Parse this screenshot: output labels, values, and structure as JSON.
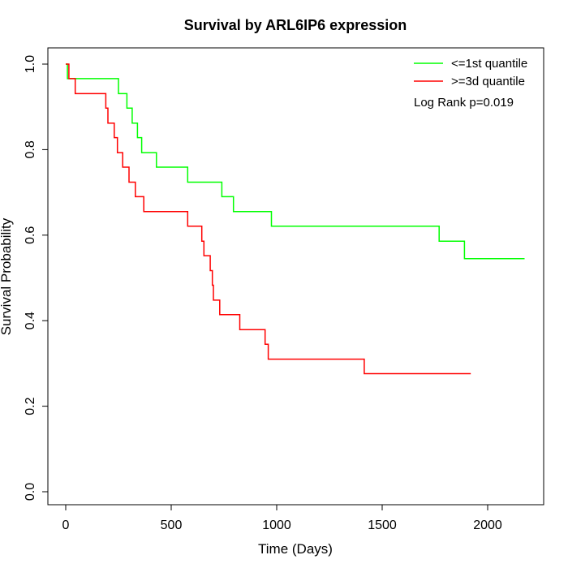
{
  "chart_data": {
    "type": "line",
    "title": "Survival by ARL6IP6 expression",
    "xlabel": "Time (Days)",
    "ylabel": "Survival Probability",
    "xlim": [
      0,
      2250
    ],
    "ylim": [
      0,
      1.0
    ],
    "xticks": [
      0,
      500,
      1000,
      1500,
      2000
    ],
    "xtick_labels": [
      "0",
      "500",
      "1000",
      "1500",
      "2000"
    ],
    "yticks": [
      0.0,
      0.2,
      0.4,
      0.6,
      0.8,
      1.0
    ],
    "ytick_labels": [
      "0.0",
      "0.2",
      "0.4",
      "0.6",
      "0.8",
      "1.0"
    ],
    "grid": false,
    "legend_position": "top-right",
    "annotation": "Log Rank p=0.019",
    "series": [
      {
        "name": "<=1st quantile",
        "color": "#00ff00",
        "step": true,
        "points": [
          [
            0,
            1.0
          ],
          [
            8,
            1.0
          ],
          [
            8,
            0.966
          ],
          [
            250,
            0.966
          ],
          [
            250,
            0.931
          ],
          [
            290,
            0.931
          ],
          [
            290,
            0.897
          ],
          [
            315,
            0.897
          ],
          [
            315,
            0.862
          ],
          [
            340,
            0.862
          ],
          [
            340,
            0.828
          ],
          [
            360,
            0.828
          ],
          [
            360,
            0.793
          ],
          [
            430,
            0.793
          ],
          [
            430,
            0.759
          ],
          [
            578,
            0.759
          ],
          [
            578,
            0.724
          ],
          [
            740,
            0.724
          ],
          [
            740,
            0.69
          ],
          [
            795,
            0.69
          ],
          [
            795,
            0.655
          ],
          [
            975,
            0.655
          ],
          [
            975,
            0.621
          ],
          [
            1770,
            0.621
          ],
          [
            1770,
            0.586
          ],
          [
            1890,
            0.586
          ],
          [
            1890,
            0.545
          ],
          [
            2175,
            0.545
          ]
        ]
      },
      {
        "name": ">=3d quantile",
        "color": "#ff0000",
        "step": true,
        "points": [
          [
            0,
            1.0
          ],
          [
            15,
            1.0
          ],
          [
            15,
            0.966
          ],
          [
            45,
            0.966
          ],
          [
            45,
            0.931
          ],
          [
            190,
            0.931
          ],
          [
            190,
            0.897
          ],
          [
            200,
            0.897
          ],
          [
            200,
            0.862
          ],
          [
            230,
            0.862
          ],
          [
            230,
            0.828
          ],
          [
            245,
            0.828
          ],
          [
            245,
            0.793
          ],
          [
            270,
            0.793
          ],
          [
            270,
            0.759
          ],
          [
            300,
            0.759
          ],
          [
            300,
            0.724
          ],
          [
            330,
            0.724
          ],
          [
            330,
            0.69
          ],
          [
            370,
            0.69
          ],
          [
            370,
            0.655
          ],
          [
            578,
            0.655
          ],
          [
            578,
            0.621
          ],
          [
            645,
            0.621
          ],
          [
            645,
            0.586
          ],
          [
            655,
            0.586
          ],
          [
            655,
            0.552
          ],
          [
            685,
            0.552
          ],
          [
            685,
            0.517
          ],
          [
            695,
            0.517
          ],
          [
            695,
            0.483
          ],
          [
            700,
            0.483
          ],
          [
            700,
            0.448
          ],
          [
            730,
            0.448
          ],
          [
            730,
            0.414
          ],
          [
            825,
            0.414
          ],
          [
            825,
            0.379
          ],
          [
            945,
            0.379
          ],
          [
            945,
            0.345
          ],
          [
            960,
            0.345
          ],
          [
            960,
            0.31
          ],
          [
            1415,
            0.31
          ],
          [
            1415,
            0.276
          ],
          [
            1920,
            0.276
          ]
        ]
      }
    ]
  }
}
